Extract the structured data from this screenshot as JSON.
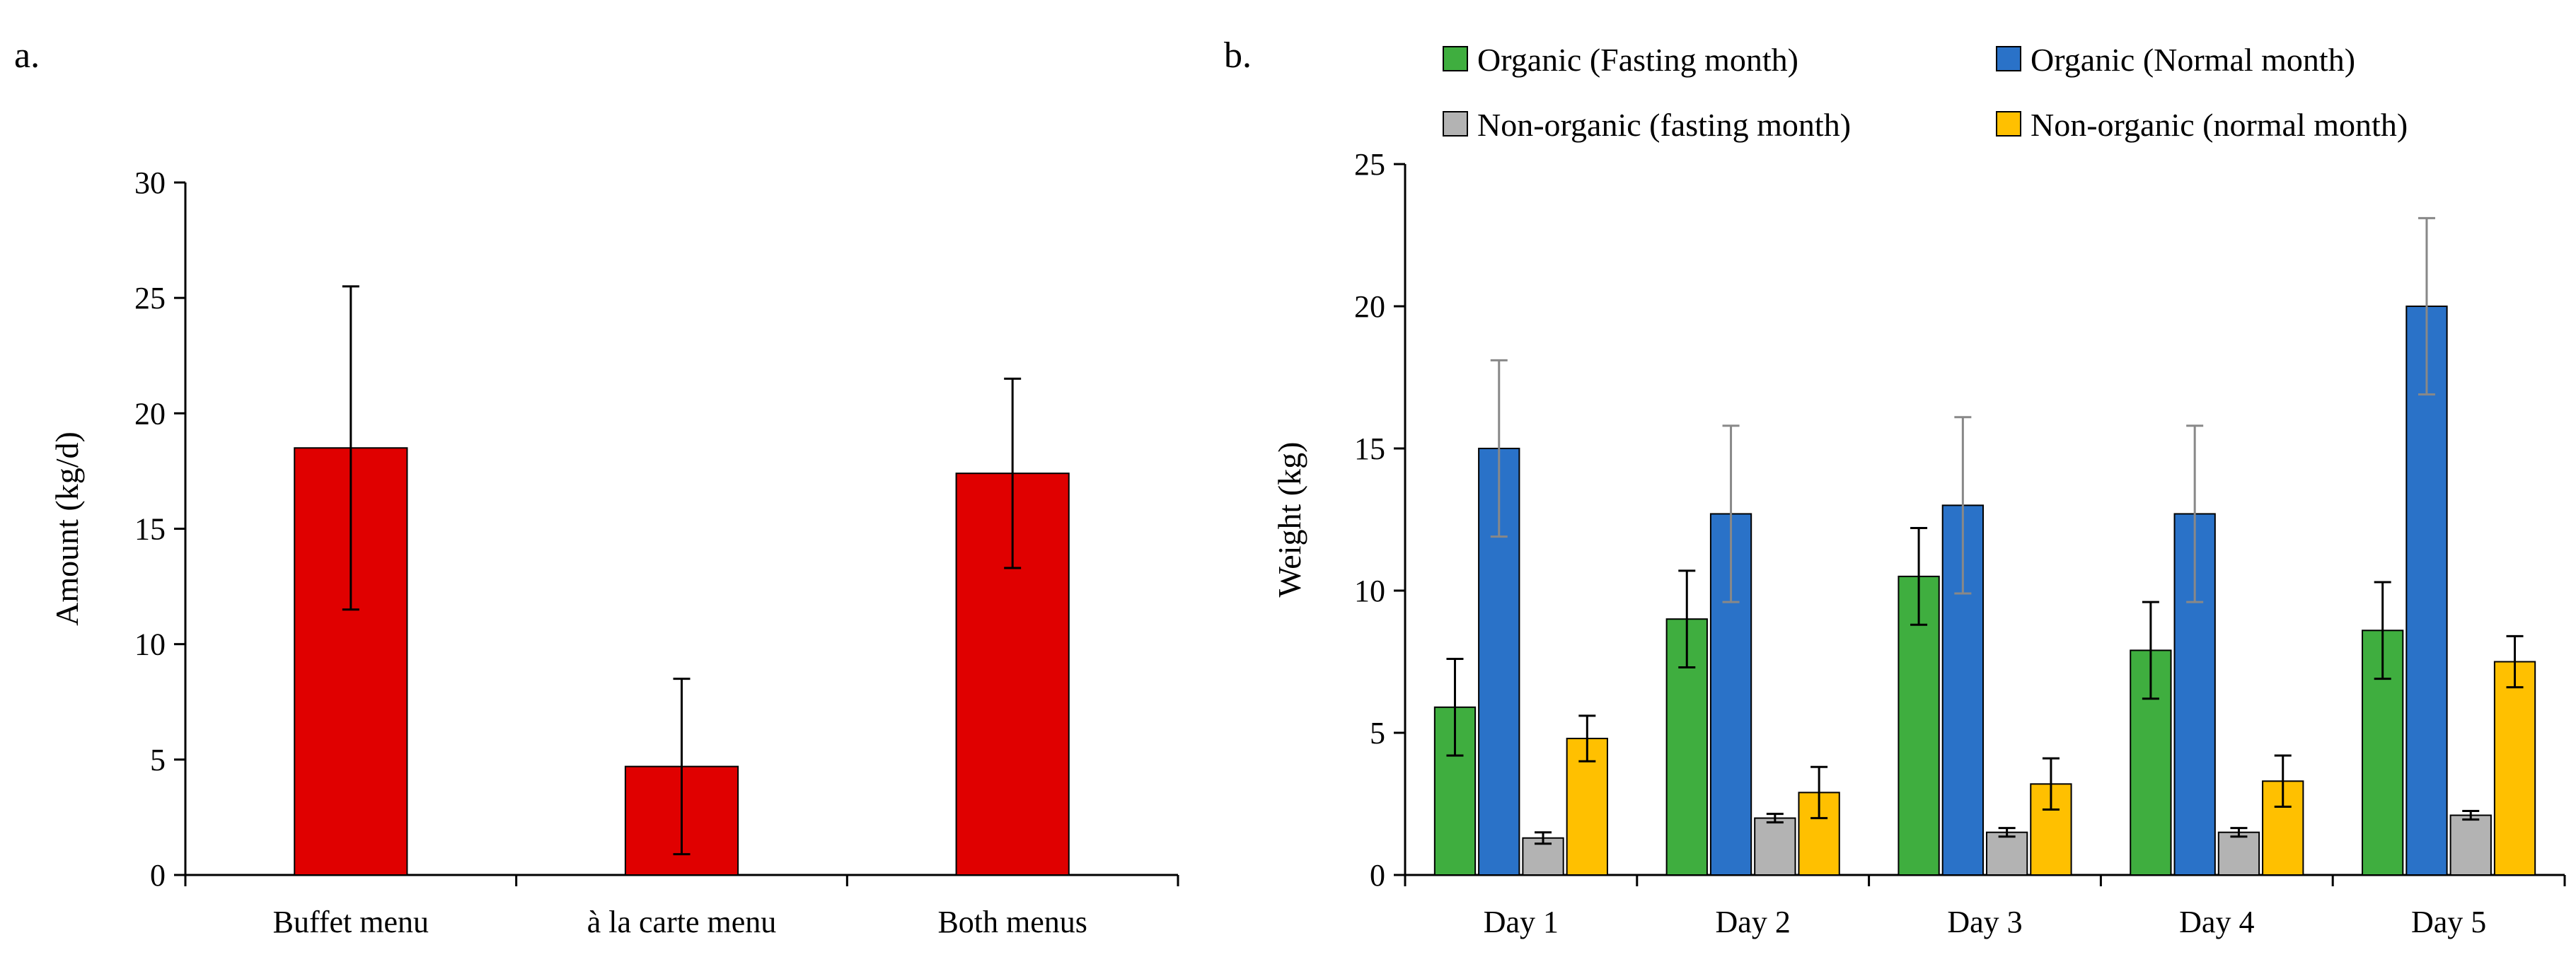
{
  "chart_data": [
    {
      "type": "bar",
      "panel_label": "a.",
      "categories": [
        "Buffet menu",
        "à la carte menu",
        "Both menus"
      ],
      "series": [
        {
          "name": "Amount",
          "color": "#e00000",
          "values": [
            18.5,
            4.7,
            17.4
          ],
          "errors": [
            7.0,
            3.8,
            4.1
          ]
        }
      ],
      "ylabel": "Amount (kg/d)",
      "xlabel": "",
      "ylim": [
        0,
        30
      ],
      "yticks": [
        0,
        5,
        10,
        15,
        20,
        25,
        30
      ],
      "ytick_labels": [
        "0",
        "5",
        "10",
        "15",
        "20",
        "25",
        "30"
      ],
      "grid": false
    },
    {
      "type": "bar",
      "panel_label": "b.",
      "categories": [
        "Day 1",
        "Day 2",
        "Day 3",
        "Day 4",
        "Day 5"
      ],
      "series": [
        {
          "name": "Organic (Fasting month)",
          "color": "#3fae3f",
          "values": [
            5.9,
            9.0,
            10.5,
            7.9,
            8.6
          ],
          "errors": [
            1.7,
            1.7,
            1.7,
            1.7,
            1.7
          ]
        },
        {
          "name": "Organic (Normal month)",
          "color": "#2a72c8",
          "values": [
            15.0,
            12.7,
            13.0,
            12.7,
            20.0
          ],
          "errors": [
            3.1,
            3.1,
            3.1,
            3.1,
            3.1
          ]
        },
        {
          "name": "Non-organic (fasting month)",
          "color": "#b3b3b3",
          "values": [
            1.3,
            2.0,
            1.5,
            1.5,
            2.1
          ],
          "errors": [
            0.2,
            0.15,
            0.15,
            0.15,
            0.15
          ]
        },
        {
          "name": "Non-organic (normal month)",
          "color": "#ffc000",
          "values": [
            4.8,
            2.9,
            3.2,
            3.3,
            7.5
          ],
          "errors": [
            0.8,
            0.9,
            0.9,
            0.9,
            0.9
          ]
        }
      ],
      "ylabel": "Weight (kg)",
      "xlabel": "",
      "ylim": [
        0,
        25
      ],
      "yticks": [
        0,
        5,
        10,
        15,
        20,
        25
      ],
      "ytick_labels": [
        "0",
        "5",
        "10",
        "15",
        "20",
        "25"
      ],
      "legend_position": "top",
      "grid": false
    }
  ]
}
